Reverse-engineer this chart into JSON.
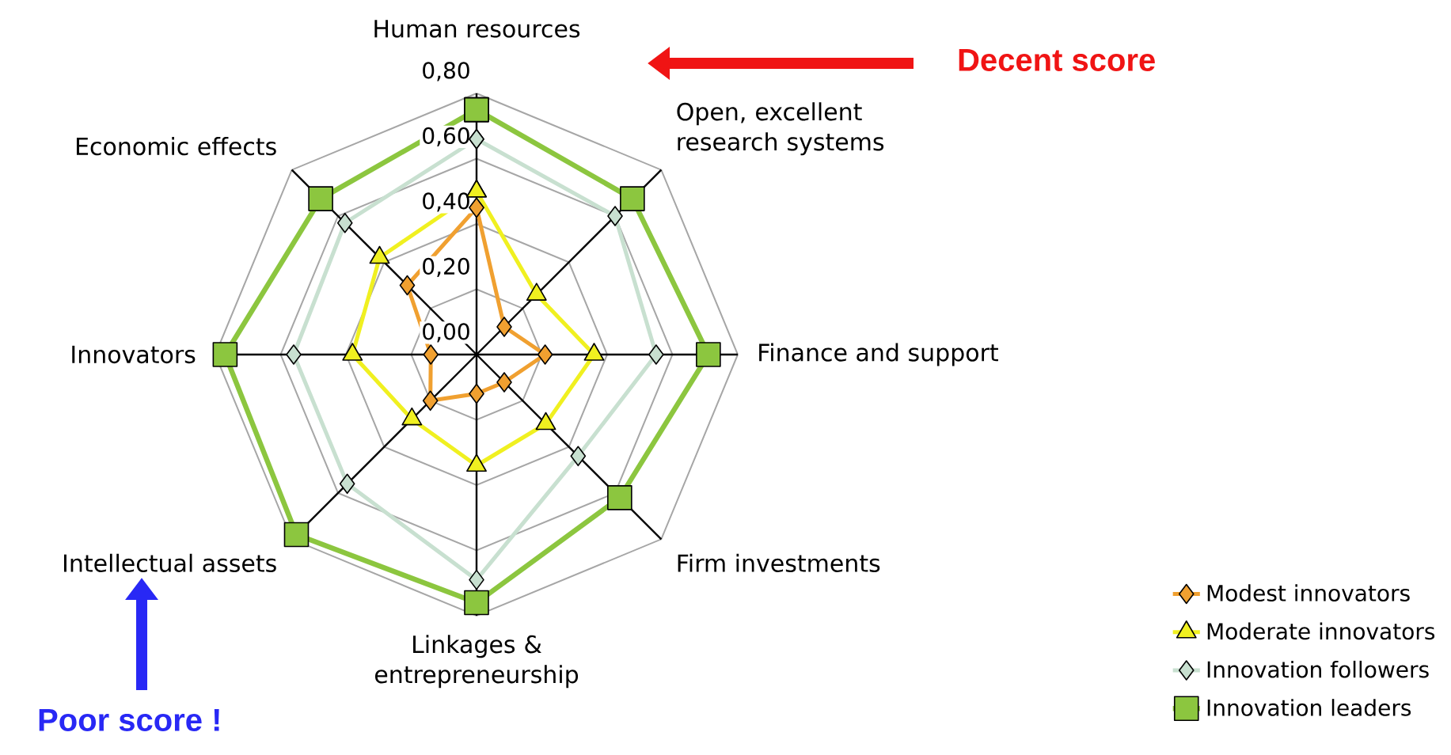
{
  "chart_data": {
    "type": "radar",
    "categories": [
      "Human resources",
      "Open, excellent research systems",
      "Finance and support",
      "Firm investments",
      "Linkages & entrepreneurship",
      "Intellectual assets",
      "Innovators",
      "Economic effects"
    ],
    "series": [
      {
        "name": "Modest innovators",
        "color": "#f0a030",
        "marker": "diamond",
        "values": [
          0.45,
          0.12,
          0.21,
          0.12,
          0.12,
          0.2,
          0.14,
          0.3
        ]
      },
      {
        "name": "Moderate innovators",
        "color": "#f0f020",
        "marker": "triangle",
        "values": [
          0.5,
          0.26,
          0.36,
          0.3,
          0.34,
          0.28,
          0.38,
          0.42
        ]
      },
      {
        "name": "Innovation followers",
        "color": "#c8e0d0",
        "marker": "diamond",
        "values": [
          0.66,
          0.6,
          0.55,
          0.44,
          0.69,
          0.56,
          0.56,
          0.57
        ]
      },
      {
        "name": "Innovation leaders",
        "color": "#8cc63f",
        "marker": "square",
        "values": [
          0.75,
          0.675,
          0.71,
          0.62,
          0.76,
          0.78,
          0.77,
          0.675
        ]
      }
    ],
    "ylim": [
      0,
      0.8
    ],
    "yticks": [
      {
        "value": 0,
        "label": "0,00"
      },
      {
        "value": 0.2,
        "label": "0,20"
      },
      {
        "value": 0.4,
        "label": "0,40"
      },
      {
        "value": 0.6,
        "label": "0,60"
      },
      {
        "value": 0.8,
        "label": "0,80"
      }
    ],
    "grid": true,
    "legend": "bottom right",
    "annotations": [
      "Decent score",
      "Poor score !"
    ]
  }
}
